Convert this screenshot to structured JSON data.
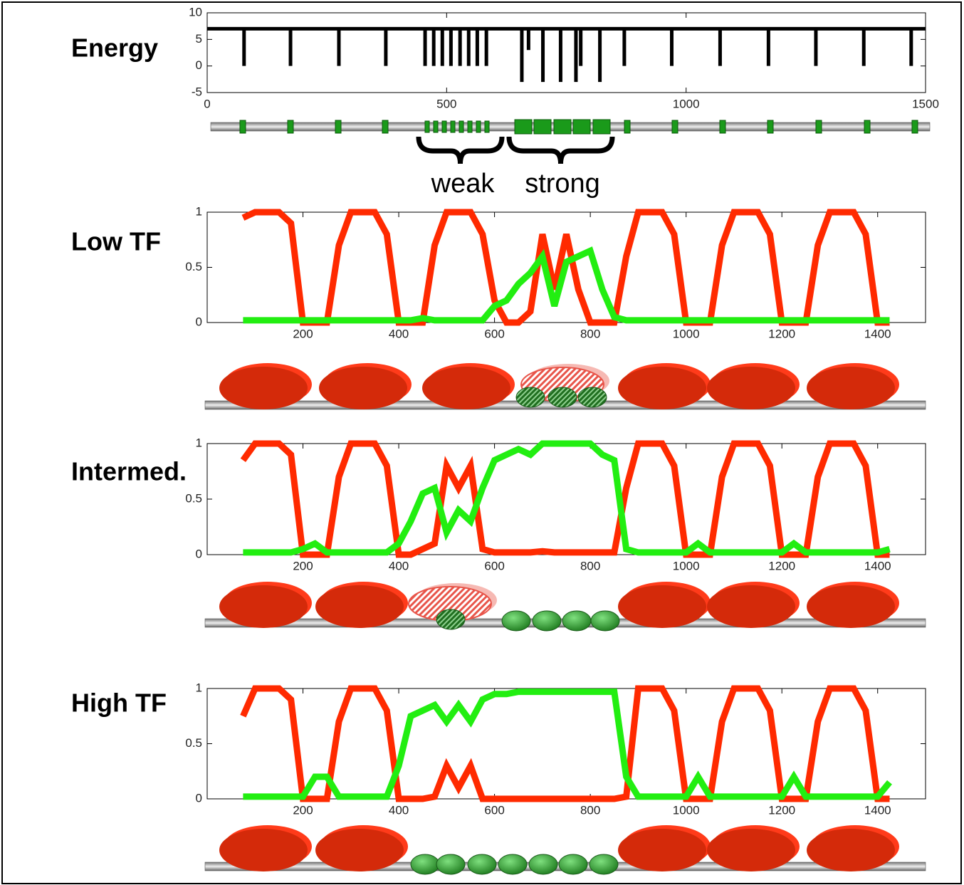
{
  "chart_data": [
    {
      "type": "spike",
      "title": "Energy",
      "color": "#000000",
      "baseline": 7,
      "x": [
        77,
        174,
        275,
        373,
        455,
        473,
        491,
        509,
        528,
        546,
        564,
        583,
        657,
        671,
        701,
        738,
        770,
        780,
        820,
        871,
        970,
        1071,
        1172,
        1271,
        1371,
        1470
      ],
      "values": [
        0,
        0,
        0,
        0,
        0,
        0,
        0,
        0,
        0,
        0,
        0,
        0,
        -3,
        3,
        -3,
        -3,
        -3,
        0,
        -3,
        0,
        0,
        0,
        0,
        0,
        0,
        0
      ],
      "xlim": [
        0,
        1500
      ],
      "ylim": [
        -5,
        10
      ],
      "xticks": [
        0,
        500,
        1000,
        1500
      ],
      "yticks": [
        -5,
        0,
        5,
        10
      ],
      "annotations": [
        "weak",
        "strong"
      ]
    },
    {
      "type": "line",
      "title": "Low TF",
      "x": [
        75,
        100,
        125,
        150,
        175,
        200,
        225,
        250,
        275,
        300,
        325,
        350,
        375,
        400,
        425,
        450,
        475,
        500,
        525,
        550,
        575,
        600,
        625,
        650,
        675,
        700,
        725,
        750,
        775,
        800,
        825,
        850,
        875,
        900,
        925,
        950,
        975,
        1000,
        1025,
        1050,
        1075,
        1100,
        1125,
        1150,
        1175,
        1200,
        1225,
        1250,
        1275,
        1300,
        1325,
        1350,
        1375,
        1400,
        1425
      ],
      "series": [
        {
          "color": "#ff2a00",
          "values": [
            0.95,
            1,
            1,
            1,
            0.9,
            0,
            0,
            0,
            0.7,
            1,
            1,
            1,
            0.8,
            0,
            0,
            0,
            0.7,
            1,
            1,
            1,
            0.8,
            0.2,
            0,
            0,
            0.1,
            0.8,
            0.3,
            0.8,
            0.3,
            0,
            0,
            0,
            0.6,
            1,
            1,
            1,
            0.8,
            0,
            0,
            0,
            0.7,
            1,
            1,
            1,
            0.8,
            0,
            0,
            0,
            0.7,
            1,
            1,
            1,
            0.8,
            0,
            0
          ]
        },
        {
          "color": "#22ee11",
          "values": [
            0.02,
            0.02,
            0.02,
            0.02,
            0.02,
            0.02,
            0.02,
            0.02,
            0.02,
            0.02,
            0.02,
            0.02,
            0.02,
            0.02,
            0.02,
            0.04,
            0.02,
            0.02,
            0.02,
            0.02,
            0.02,
            0.15,
            0.2,
            0.35,
            0.45,
            0.6,
            0.15,
            0.55,
            0.6,
            0.65,
            0.3,
            0.05,
            0.02,
            0.02,
            0.02,
            0.02,
            0.02,
            0.02,
            0.02,
            0.02,
            0.02,
            0.02,
            0.02,
            0.02,
            0.02,
            0.02,
            0.02,
            0.02,
            0.02,
            0.02,
            0.02,
            0.02,
            0.02,
            0.02,
            0.02
          ]
        }
      ],
      "xlim": [
        0,
        1500
      ],
      "ylim": [
        0,
        1
      ],
      "xticks": [
        200,
        400,
        600,
        800,
        1000,
        1200,
        1400
      ],
      "yticks": [
        0,
        0.5,
        1
      ]
    },
    {
      "type": "line",
      "title": "Intermed.",
      "x": [
        75,
        100,
        125,
        150,
        175,
        200,
        225,
        250,
        275,
        300,
        325,
        350,
        375,
        400,
        425,
        450,
        475,
        500,
        525,
        550,
        575,
        600,
        625,
        650,
        675,
        700,
        725,
        750,
        775,
        800,
        825,
        850,
        875,
        900,
        925,
        950,
        975,
        1000,
        1025,
        1050,
        1075,
        1100,
        1125,
        1150,
        1175,
        1200,
        1225,
        1250,
        1275,
        1300,
        1325,
        1350,
        1375,
        1400,
        1425
      ],
      "series": [
        {
          "color": "#ff2a00",
          "values": [
            0.85,
            1,
            1,
            1,
            0.9,
            0,
            0,
            0,
            0.7,
            1,
            1,
            1,
            0.8,
            0,
            0,
            0.05,
            0.1,
            0.8,
            0.6,
            0.8,
            0.05,
            0.02,
            0.02,
            0.02,
            0.02,
            0.03,
            0.02,
            0.02,
            0.02,
            0.02,
            0.02,
            0.02,
            0.6,
            1,
            1,
            1,
            0.8,
            0,
            0,
            0,
            0.7,
            1,
            1,
            1,
            0.8,
            0,
            0,
            0,
            0.7,
            1,
            1,
            1,
            0.8,
            0,
            0
          ]
        },
        {
          "color": "#22ee11",
          "values": [
            0.02,
            0.02,
            0.02,
            0.02,
            0.02,
            0.05,
            0.1,
            0.02,
            0.02,
            0.02,
            0.02,
            0.02,
            0.02,
            0.1,
            0.3,
            0.55,
            0.6,
            0.2,
            0.4,
            0.3,
            0.6,
            0.85,
            0.9,
            0.95,
            0.9,
            1,
            1,
            1,
            1,
            1,
            0.9,
            0.85,
            0.05,
            0.02,
            0.02,
            0.02,
            0.02,
            0.02,
            0.1,
            0.02,
            0.02,
            0.02,
            0.02,
            0.02,
            0.02,
            0.02,
            0.1,
            0.02,
            0.02,
            0.02,
            0.02,
            0.02,
            0.02,
            0.02,
            0.05
          ]
        }
      ],
      "xlim": [
        0,
        1500
      ],
      "ylim": [
        0,
        1
      ],
      "xticks": [
        200,
        400,
        600,
        800,
        1000,
        1200,
        1400
      ],
      "yticks": [
        0,
        0.5,
        1
      ]
    },
    {
      "type": "line",
      "title": "High TF",
      "x": [
        75,
        100,
        125,
        150,
        175,
        200,
        225,
        250,
        275,
        300,
        325,
        350,
        375,
        400,
        425,
        450,
        475,
        500,
        525,
        550,
        575,
        600,
        625,
        650,
        675,
        700,
        725,
        750,
        775,
        800,
        825,
        850,
        875,
        900,
        925,
        950,
        975,
        1000,
        1025,
        1050,
        1075,
        1100,
        1125,
        1150,
        1175,
        1200,
        1225,
        1250,
        1275,
        1300,
        1325,
        1350,
        1375,
        1400,
        1425
      ],
      "series": [
        {
          "color": "#ff2a00",
          "values": [
            0.75,
            1,
            1,
            1,
            0.9,
            0,
            0,
            0,
            0.7,
            1,
            1,
            1,
            0.8,
            0,
            0,
            0,
            0.02,
            0.3,
            0.1,
            0.3,
            0,
            0,
            0,
            0,
            0,
            0,
            0,
            0,
            0,
            0,
            0,
            0,
            0.02,
            1,
            1,
            1,
            0.8,
            0,
            0,
            0,
            0.7,
            1,
            1,
            1,
            0.8,
            0,
            0,
            0,
            0.7,
            1,
            1,
            1,
            0.8,
            0,
            0
          ]
        },
        {
          "color": "#22ee11",
          "values": [
            0.02,
            0.02,
            0.02,
            0.02,
            0.02,
            0.02,
            0.2,
            0.2,
            0.02,
            0.02,
            0.02,
            0.02,
            0.02,
            0.3,
            0.75,
            0.8,
            0.85,
            0.7,
            0.85,
            0.7,
            0.9,
            0.95,
            0.95,
            0.97,
            0.97,
            0.97,
            0.97,
            0.97,
            0.97,
            0.97,
            0.97,
            0.97,
            0.2,
            0.02,
            0.02,
            0.02,
            0.02,
            0.02,
            0.2,
            0.02,
            0.02,
            0.02,
            0.02,
            0.02,
            0.02,
            0.02,
            0.2,
            0.02,
            0.02,
            0.02,
            0.02,
            0.02,
            0.02,
            0.02,
            0.15
          ]
        }
      ],
      "xlim": [
        0,
        1500
      ],
      "ylim": [
        0,
        1
      ],
      "xticks": [
        200,
        400,
        600,
        800,
        1000,
        1200,
        1400
      ],
      "yticks": [
        0,
        0.5,
        1
      ]
    }
  ]
}
